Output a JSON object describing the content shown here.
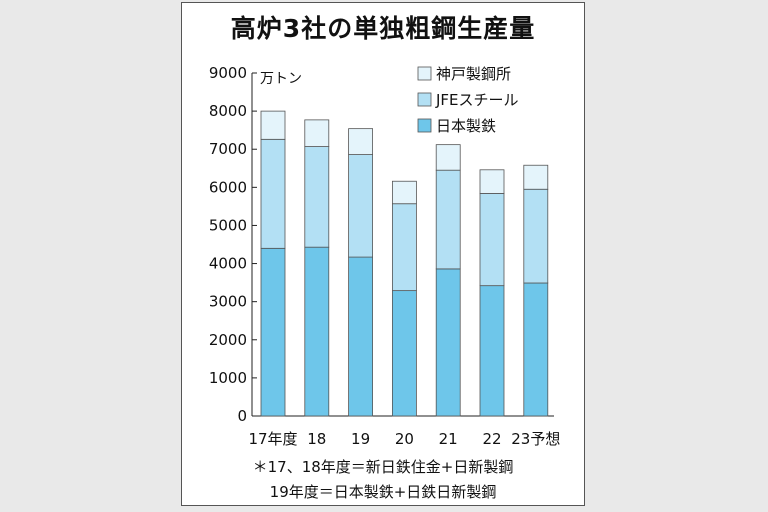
{
  "title": "高炉3社の単独粗鋼生産量",
  "footnotes": [
    "＊17、18年度＝新日鉄住金+日新製鋼",
    "19年度＝日本製鉄+日鉄日新製鋼"
  ],
  "chart_data": {
    "type": "bar",
    "stacked": true,
    "title": "高炉3社の単独粗鋼生産量",
    "unit": "万トン",
    "categories": [
      "17年度",
      "18",
      "19",
      "20",
      "21",
      "22",
      "23予想"
    ],
    "series": [
      {
        "name": "日本製鉄",
        "color": "#6ec6ea",
        "values": [
          4400,
          4430,
          4170,
          3290,
          3860,
          3420,
          3490
        ]
      },
      {
        "name": "JFEスチール",
        "color": "#b3e0f4",
        "values": [
          2860,
          2640,
          2690,
          2280,
          2590,
          2420,
          2460
        ]
      },
      {
        "name": "神戸製鋼所",
        "color": "#e4f4fb",
        "values": [
          740,
          700,
          680,
          590,
          670,
          620,
          630
        ]
      }
    ],
    "ylim": [
      0,
      9000
    ],
    "yticks": [
      0,
      1000,
      2000,
      3000,
      4000,
      5000,
      6000,
      7000,
      8000,
      9000
    ],
    "legend": "top-right",
    "grid": false
  }
}
